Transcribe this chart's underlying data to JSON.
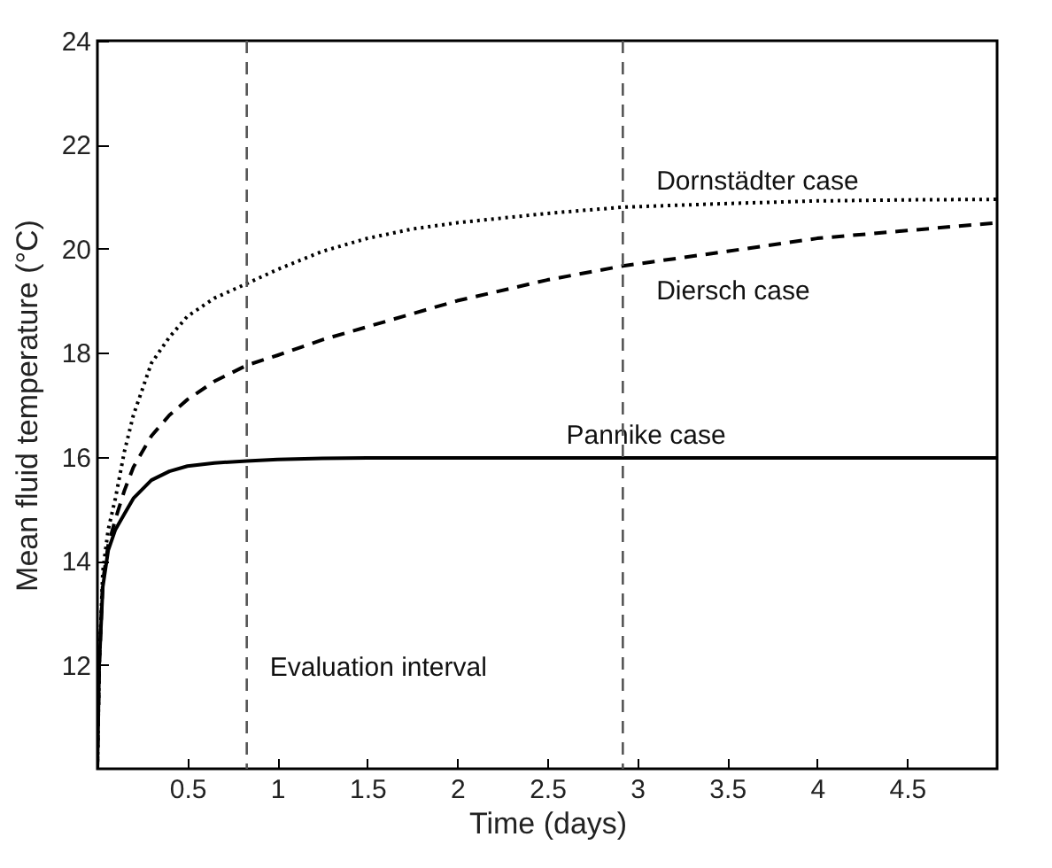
{
  "chart_data": {
    "type": "line",
    "xlabel": "Time (days)",
    "ylabel": "Mean fluid temperature (°C)",
    "xlim": [
      0,
      5
    ],
    "ylim": [
      10,
      24
    ],
    "xticks": [
      0.5,
      1,
      1.5,
      2,
      2.5,
      3,
      3.5,
      4,
      4.5
    ],
    "yticks": [
      12,
      14,
      16,
      18,
      20,
      22,
      24
    ],
    "grid": false,
    "marker": "none",
    "series": [
      {
        "name": "Dornstädter case",
        "color": "#000000",
        "line_style": "dotted",
        "x": [
          0,
          0.01,
          0.03,
          0.06,
          0.1,
          0.15,
          0.2,
          0.3,
          0.4,
          0.5,
          0.65,
          0.83,
          1,
          1.25,
          1.5,
          1.75,
          2,
          2.5,
          2.92,
          3.5,
          4,
          4.5,
          5
        ],
        "values": [
          10,
          12,
          13.8,
          14.6,
          15.2,
          16.1,
          16.8,
          17.8,
          18.3,
          18.7,
          19.05,
          19.33,
          19.6,
          19.95,
          20.2,
          20.38,
          20.5,
          20.68,
          20.8,
          20.87,
          20.92,
          20.94,
          20.95
        ]
      },
      {
        "name": "Diersch case",
        "color": "#000000",
        "line_style": "dashed",
        "x": [
          0,
          0.01,
          0.03,
          0.06,
          0.1,
          0.15,
          0.2,
          0.3,
          0.4,
          0.5,
          0.65,
          0.83,
          1,
          1.25,
          1.5,
          1.75,
          2,
          2.5,
          2.92,
          3.5,
          4,
          4.5,
          5
        ],
        "values": [
          10,
          12,
          13.6,
          14.3,
          14.8,
          15.35,
          15.8,
          16.4,
          16.8,
          17.1,
          17.45,
          17.76,
          17.95,
          18.25,
          18.5,
          18.75,
          19,
          19.4,
          19.67,
          19.95,
          20.2,
          20.35,
          20.5
        ]
      },
      {
        "name": "Pannike case",
        "color": "#000000",
        "line_style": "solid",
        "x": [
          0,
          0.01,
          0.03,
          0.06,
          0.1,
          0.15,
          0.2,
          0.3,
          0.4,
          0.5,
          0.65,
          0.83,
          1,
          1.25,
          1.5,
          2,
          3,
          4,
          5
        ],
        "values": [
          10,
          12,
          13.5,
          14.2,
          14.6,
          14.9,
          15.2,
          15.55,
          15.72,
          15.82,
          15.88,
          15.92,
          15.95,
          15.97,
          15.98,
          15.98,
          15.98,
          15.98,
          15.98
        ]
      }
    ],
    "ref_lines": [
      {
        "axis": "x",
        "value": 0.83,
        "label": null,
        "color": "#555555",
        "line_style": "dashed"
      },
      {
        "axis": "x",
        "value": 2.92,
        "label": null,
        "color": "#555555",
        "line_style": "dashed"
      }
    ],
    "annotations": [
      "Evaluation interval"
    ]
  }
}
